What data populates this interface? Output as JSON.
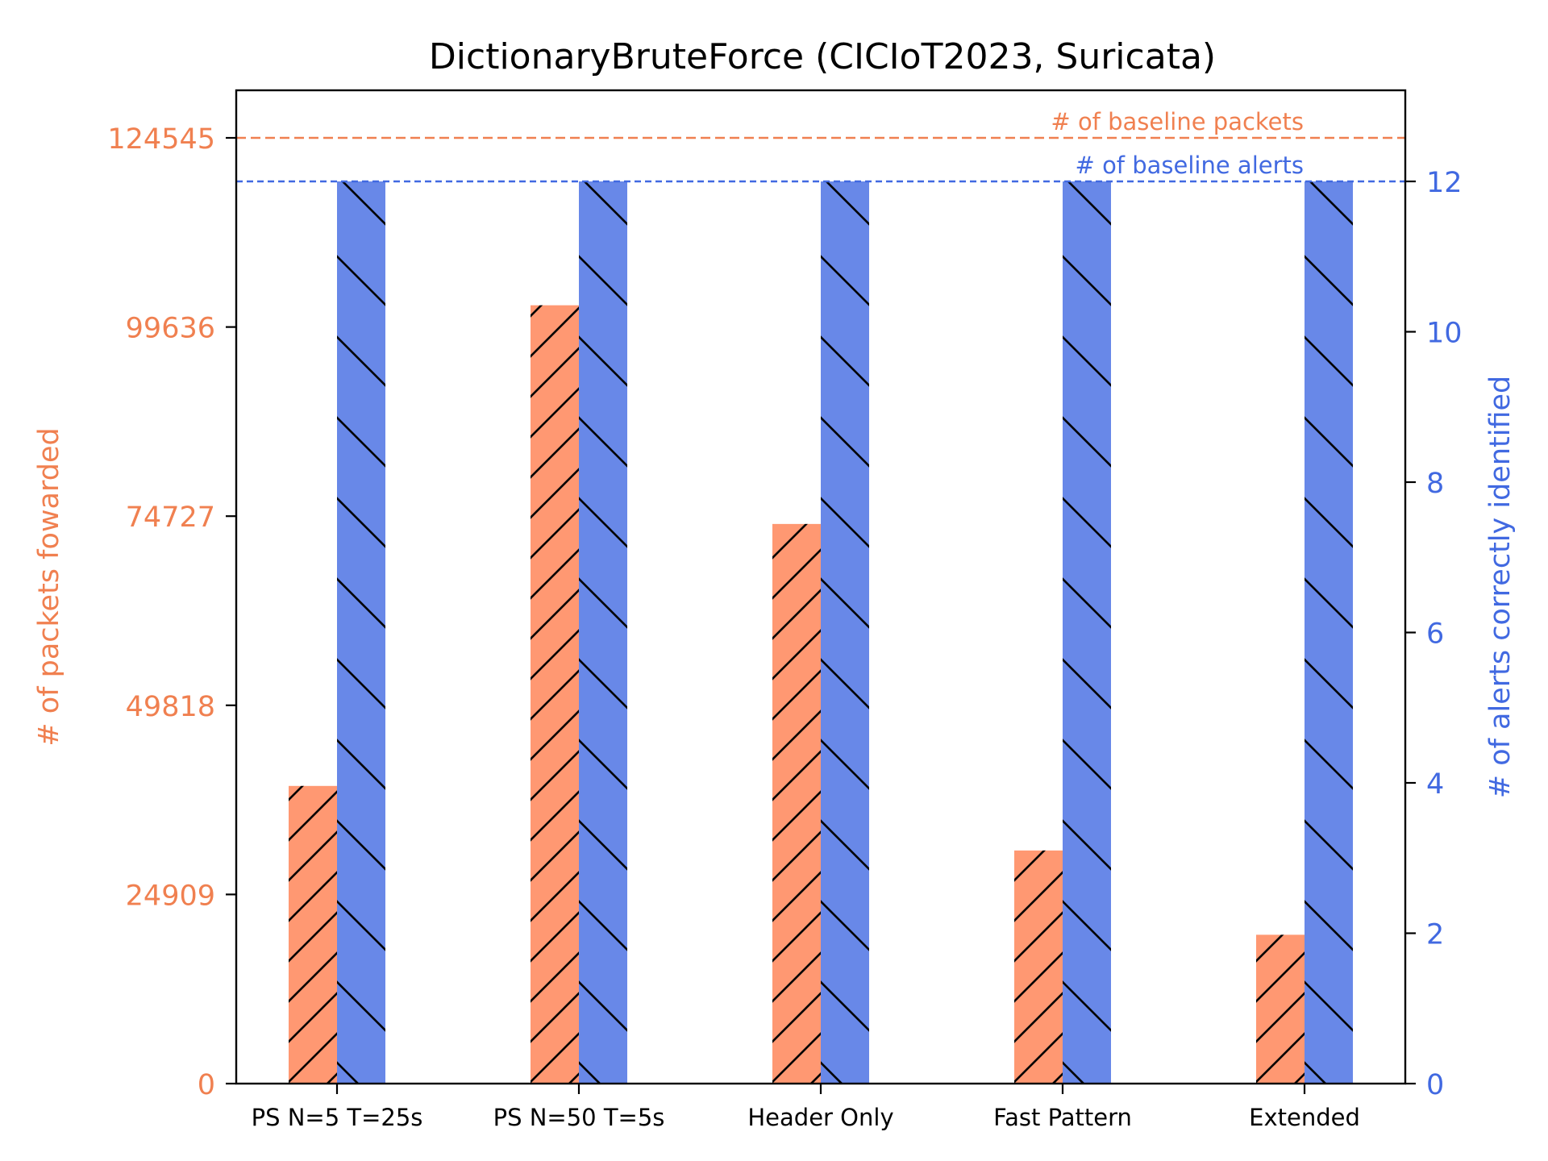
{
  "chart_data": {
    "type": "bar",
    "title": "DictionaryBruteForce (CICIoT2023, Suricata)",
    "categories": [
      "PS N=5 T=25s",
      "PS N=50 T=5s",
      "Header Only",
      "Fast Pattern",
      "Extended"
    ],
    "series": [
      {
        "axis": "left",
        "hatch": "forward-diagonal",
        "color": "#ff9872",
        "values": [
          39200,
          102500,
          73700,
          30700,
          19600
        ]
      },
      {
        "axis": "right",
        "hatch": "back-diagonal",
        "color": "#6888e8",
        "values": [
          12,
          12,
          12,
          12,
          12
        ]
      }
    ],
    "ylabel_left": "# of packets fowarded",
    "ylabel_right": "# of alerts correctly identified",
    "ylim_left": [
      0,
      124545
    ],
    "yticks_left": [
      0,
      24909,
      49818,
      74727,
      99636,
      124545
    ],
    "ylim_right": [
      0,
      13.2
    ],
    "yticks_right": [
      0,
      2,
      4,
      6,
      8,
      10,
      12
    ],
    "tick_labels_right": [
      "0",
      "2",
      "4",
      "6",
      "8",
      "10",
      "12"
    ],
    "reference_lines": [
      {
        "axis": "left",
        "value": 124545,
        "label": "# of baseline packets",
        "color": "#f08050",
        "style": "dashed"
      },
      {
        "axis": "right",
        "value": 12,
        "label": "# of baseline alerts",
        "color": "#4169e1",
        "style": "dashed"
      }
    ],
    "left_axis_color": "#f08050",
    "right_axis_color": "#4169e1",
    "grid": false,
    "legend": "none"
  }
}
